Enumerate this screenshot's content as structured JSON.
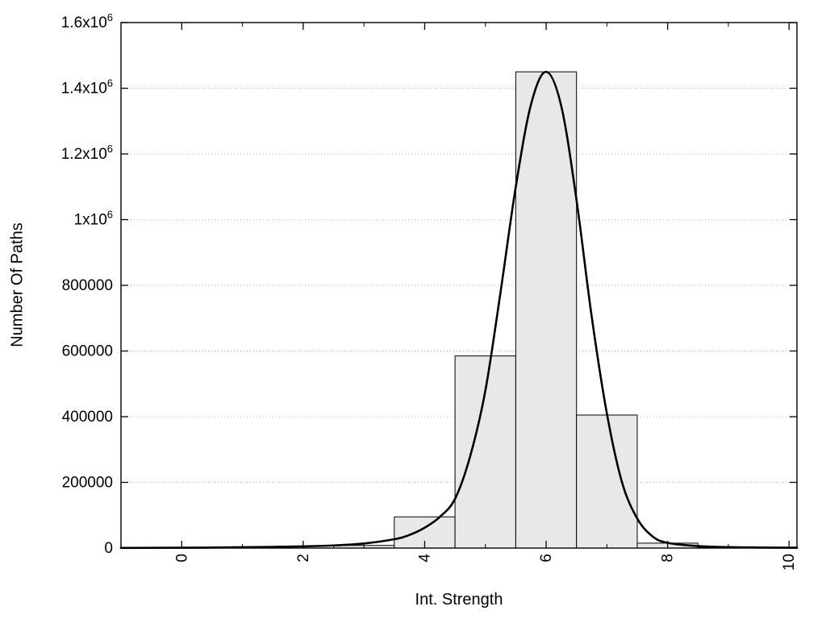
{
  "chart_data": {
    "type": "bar",
    "title": "",
    "xlabel": "Int. Strength",
    "ylabel": "Number Of Paths",
    "xlim": [
      -1,
      10.13
    ],
    "ylim": [
      0,
      1600000
    ],
    "grid": {
      "horizontal": true,
      "style": "dotted",
      "color": "#b4b4b4"
    },
    "x_axis": {
      "major_ticks": [
        0,
        2,
        4,
        6,
        8,
        10
      ],
      "major_labels": [
        "0",
        "2",
        "4",
        "6",
        "8",
        "10"
      ],
      "minor_ticks": [
        1,
        3,
        5,
        7,
        9
      ],
      "label_rotation_deg": -90
    },
    "y_axis": {
      "ticks": [
        {
          "value": 0,
          "text": "0",
          "sup": ""
        },
        {
          "value": 200000,
          "text": "200000",
          "sup": ""
        },
        {
          "value": 400000,
          "text": "400000",
          "sup": ""
        },
        {
          "value": 600000,
          "text": "600000",
          "sup": ""
        },
        {
          "value": 800000,
          "text": "800000",
          "sup": ""
        },
        {
          "value": 1000000,
          "text": "1x10",
          "sup": "6"
        },
        {
          "value": 1200000,
          "text": "1.2x10",
          "sup": "6"
        },
        {
          "value": 1400000,
          "text": "1.4x10",
          "sup": "6"
        },
        {
          "value": 1600000,
          "text": "1.6x10",
          "sup": "6"
        }
      ]
    },
    "bars": {
      "fill": "#e8e8e8",
      "stroke": "#000000",
      "bin_width": 1,
      "centers": [
        3,
        4,
        5,
        6,
        7,
        8,
        9
      ],
      "values": [
        8000,
        95000,
        585000,
        1450000,
        405000,
        15000,
        2000
      ]
    },
    "curve": {
      "color": "#000000",
      "stroke_width": 2.6,
      "points": [
        [
          -1,
          500
        ],
        [
          0,
          1000
        ],
        [
          0.5,
          1600
        ],
        [
          1,
          2500
        ],
        [
          1.5,
          3600
        ],
        [
          2,
          5200
        ],
        [
          2.5,
          8000
        ],
        [
          3,
          14000
        ],
        [
          3.5,
          27000
        ],
        [
          3.75,
          40000
        ],
        [
          4,
          62000
        ],
        [
          4.25,
          95000
        ],
        [
          4.5,
          150000
        ],
        [
          4.75,
          280000
        ],
        [
          5,
          480000
        ],
        [
          5.25,
          780000
        ],
        [
          5.5,
          1100000
        ],
        [
          5.75,
          1350000
        ],
        [
          6,
          1450000
        ],
        [
          6.25,
          1345000
        ],
        [
          6.5,
          1060000
        ],
        [
          6.75,
          705000
        ],
        [
          7,
          410000
        ],
        [
          7.25,
          200000
        ],
        [
          7.5,
          90000
        ],
        [
          7.75,
          36000
        ],
        [
          8,
          16000
        ],
        [
          8.5,
          6000
        ],
        [
          9,
          3000
        ],
        [
          9.5,
          1800
        ],
        [
          10.13,
          1000
        ]
      ]
    }
  }
}
